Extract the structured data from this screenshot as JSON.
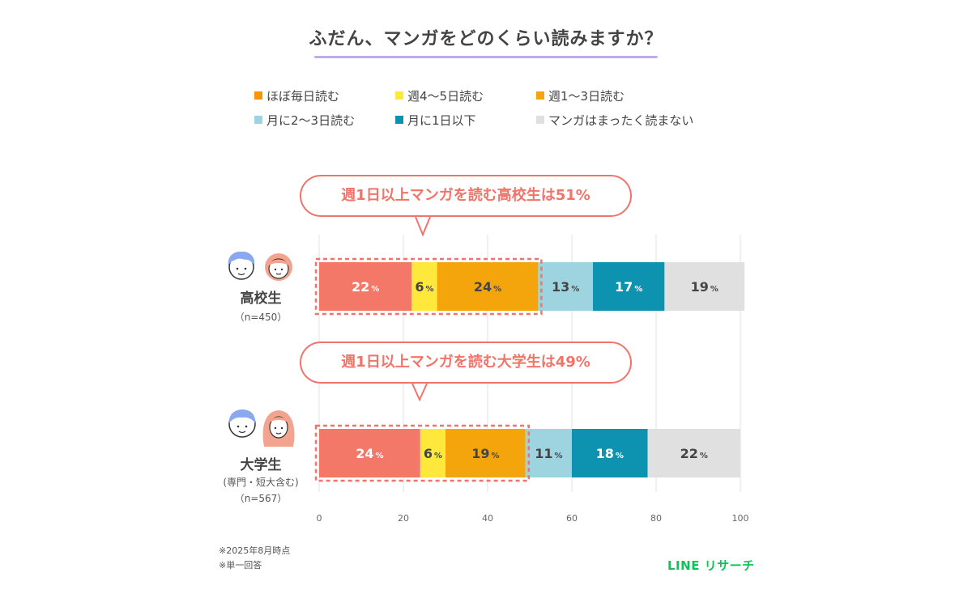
{
  "title": "ふだん、マンガをどのくらい読みますか？",
  "legend": [
    {
      "label": "ほぼ毎日読む",
      "color": "#f39800"
    },
    {
      "label": "週4～5日読む",
      "color": "#ffe83c"
    },
    {
      "label": "週1～3日読む",
      "color": "#f5a50c"
    },
    {
      "label": "月に2～3日読む",
      "color": "#9dd4df"
    },
    {
      "label": "月に1日以下",
      "color": "#0d93b0"
    },
    {
      "label": "マンガはまったく読まない",
      "color": "#e0e0e0"
    }
  ],
  "callouts": {
    "high_school": "週1日以上マンガを読む高校生は51%",
    "university": "週1日以上マンガを読む大学生は49%"
  },
  "groups": {
    "high_school": {
      "name": "高校生",
      "n": "（n=450）"
    },
    "university": {
      "name": "大学生",
      "sub": "(専門・短大含む)",
      "n": "（n=567）"
    }
  },
  "footnotes": [
    "※2025年8月時点",
    "※単一回答"
  ],
  "brand": "LINE リサーチ",
  "chart_data": {
    "type": "bar",
    "orientation": "horizontal",
    "stacked": true,
    "categories": [
      "高校生",
      "大学生"
    ],
    "series": [
      {
        "name": "ほぼ毎日読む",
        "color": "#f47868",
        "values": [
          22,
          24
        ]
      },
      {
        "name": "週4～5日読む",
        "color": "#ffe83c",
        "values": [
          6,
          6
        ]
      },
      {
        "name": "週1～3日読む",
        "color": "#f5a50c",
        "values": [
          24,
          19
        ]
      },
      {
        "name": "月に2～3日読む",
        "color": "#9dd4df",
        "values": [
          13,
          11
        ]
      },
      {
        "name": "月に1日以下",
        "color": "#0d93b0",
        "values": [
          17,
          18
        ]
      },
      {
        "name": "マンガはまったく読まない",
        "color": "#e0e0e0",
        "values": [
          19,
          22
        ]
      }
    ],
    "xlim": [
      0,
      100
    ],
    "xticks": [
      0,
      20,
      40,
      60,
      80,
      100
    ],
    "value_suffix": "%",
    "grid": true,
    "highlight_upto_series": 2
  }
}
